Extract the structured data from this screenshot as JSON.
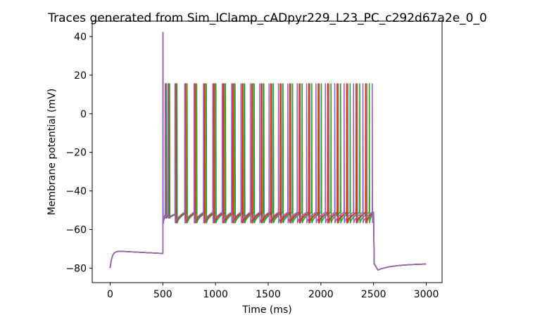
{
  "chart_data": {
    "type": "line",
    "title": "Traces generated from Sim_IClamp_cADpyr229_L23_PC_c292d67a2e_0_0",
    "xlabel": "Time (ms)",
    "ylabel": "Membrane potential (mV)",
    "xlim": [
      -170,
      3150
    ],
    "ylim": [
      -87.5,
      48
    ],
    "xticks": [
      0,
      500,
      1000,
      1500,
      2000,
      2500,
      3000
    ],
    "yticks": [
      -80,
      -60,
      -40,
      -20,
      0,
      20,
      40
    ],
    "xtick_labels": [
      "0",
      "500",
      "1000",
      "1500",
      "2000",
      "2500",
      "3000"
    ],
    "ytick_labels": [
      "−80",
      "−60",
      "−40",
      "−20",
      "0",
      "20",
      "40"
    ],
    "grid": false,
    "legend": "none",
    "stimulus_window_ms": [
      500,
      2500
    ],
    "series": [
      {
        "color": "#1f77b4",
        "spike_times": [
          500,
          530,
          560,
          630,
          725,
          815,
          905,
          995,
          1085,
          1175,
          1265,
          1355,
          1445,
          1535,
          1625,
          1715,
          1805,
          1895,
          1985,
          2075,
          2165,
          2255,
          2345,
          2435
        ]
      },
      {
        "color": "#ff7f0e",
        "spike_times": [
          500,
          527,
          556,
          626,
          720,
          810,
          900,
          990,
          1080,
          1170,
          1260,
          1350,
          1440,
          1530,
          1620,
          1710,
          1800,
          1890,
          1980,
          2070,
          2160,
          2250,
          2340,
          2430
        ]
      },
      {
        "color": "#2ca02c",
        "spike_times": [
          500,
          533,
          564,
          634,
          730,
          821,
          912,
          1003,
          1094,
          1185,
          1276,
          1367,
          1458,
          1549,
          1640,
          1731,
          1822,
          1913,
          2004,
          2095,
          2186,
          2277,
          2368,
          2459
        ]
      },
      {
        "color": "#d62728",
        "spike_times": [
          500,
          525,
          553,
          622,
          714,
          804,
          894,
          984,
          1074,
          1164,
          1254,
          1344,
          1434,
          1524,
          1614,
          1704,
          1794,
          1884,
          1974,
          2064,
          2154,
          2244,
          2334,
          2424
        ]
      },
      {
        "color": "#9467bd",
        "spike_times": [
          500,
          522,
          548,
          615,
          707,
          796,
          885,
          974,
          1063,
          1152,
          1241,
          1330,
          1419,
          1508,
          1597,
          1686,
          1775,
          1864,
          1953,
          2042,
          2131,
          2220,
          2309,
          2398,
          2487
        ]
      }
    ]
  }
}
